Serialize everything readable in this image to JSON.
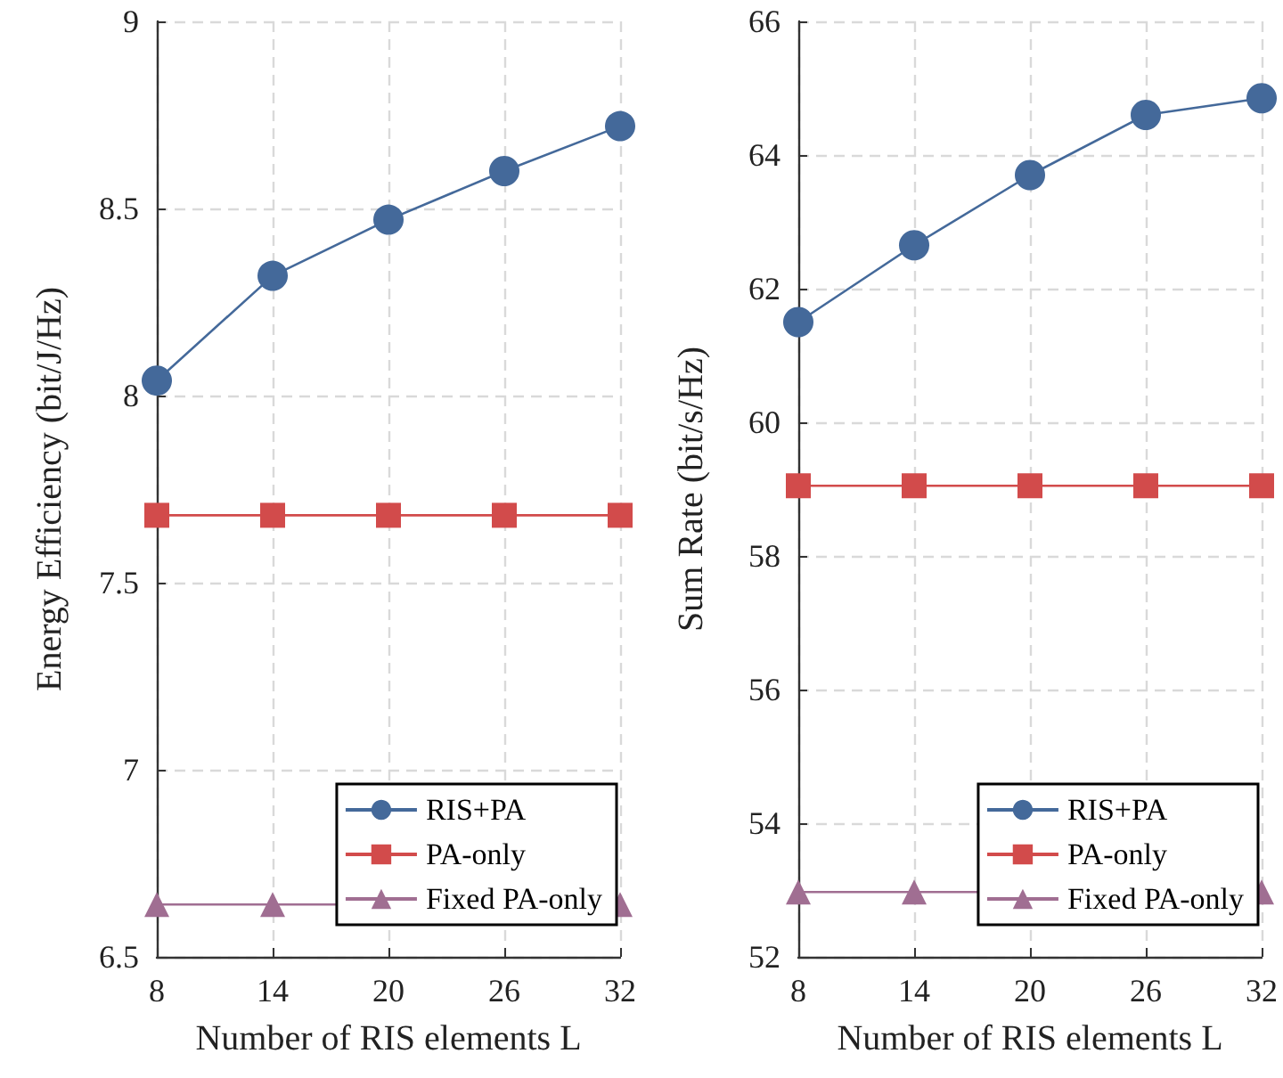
{
  "chart_data": [
    {
      "type": "line",
      "xlabel": "Number of RIS elements L",
      "ylabel": "Energy Efficiency (bit/J/Hz)",
      "x": [
        8,
        14,
        20,
        26,
        32
      ],
      "xlim": [
        8,
        32
      ],
      "xticks": [
        8,
        14,
        20,
        26,
        32
      ],
      "ylim": [
        6.5,
        9
      ],
      "yticks": [
        6.5,
        7,
        7.5,
        8,
        8.5,
        9
      ],
      "grid": true,
      "legend": "bottom right",
      "line_style": "solid",
      "series": [
        {
          "name": "RIS+PA",
          "color": "#44699a",
          "marker": "circle",
          "values": [
            8.04,
            8.32,
            8.47,
            8.6,
            8.72
          ]
        },
        {
          "name": "PA-only",
          "color": "#d24b4b",
          "marker": "square",
          "values": [
            7.68,
            7.68,
            7.68,
            7.68,
            7.68
          ]
        },
        {
          "name": "Fixed PA-only",
          "color": "#a06e92",
          "marker": "triangle",
          "values": [
            6.64,
            6.64,
            6.64,
            6.64,
            6.64
          ]
        }
      ]
    },
    {
      "type": "line",
      "xlabel": "Number of RIS elements L",
      "ylabel": "Sum Rate (bit/s/Hz)",
      "x": [
        8,
        14,
        20,
        26,
        32
      ],
      "xlim": [
        8,
        32
      ],
      "xticks": [
        8,
        14,
        20,
        26,
        32
      ],
      "ylim": [
        52,
        66
      ],
      "yticks": [
        52,
        54,
        56,
        58,
        60,
        62,
        64,
        66
      ],
      "grid": true,
      "legend": "bottom right",
      "line_style": "solid",
      "series": [
        {
          "name": "RIS+PA",
          "color": "#44699a",
          "marker": "circle",
          "values": [
            61.5,
            62.65,
            63.7,
            64.6,
            64.85
          ]
        },
        {
          "name": "PA-only",
          "color": "#d24b4b",
          "marker": "square",
          "values": [
            59.05,
            59.05,
            59.05,
            59.05,
            59.05
          ]
        },
        {
          "name": "Fixed PA-only",
          "color": "#a06e92",
          "marker": "triangle",
          "values": [
            52.97,
            52.97,
            52.97,
            52.97,
            52.97
          ]
        }
      ]
    }
  ]
}
